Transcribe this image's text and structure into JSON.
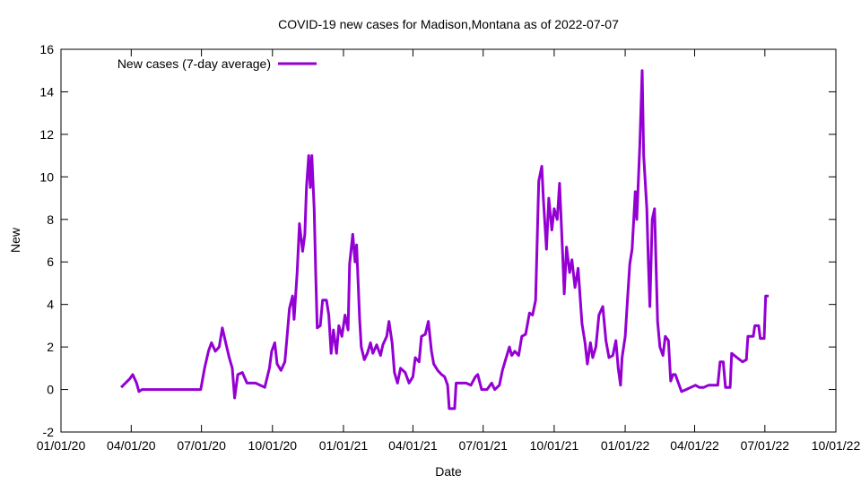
{
  "chart_data": {
    "type": "line",
    "title": "COVID-19 new cases for Madison,Montana as of 2022-07-07",
    "xlabel": "Date",
    "ylabel": "New",
    "x_unit": "days since 2020-01-01",
    "xlim": [
      0,
      1004
    ],
    "ylim": [
      -2,
      16
    ],
    "yticks": [
      -2,
      0,
      2,
      4,
      6,
      8,
      10,
      12,
      14,
      16
    ],
    "xticks": [
      {
        "day": 0,
        "label": "01/01/20"
      },
      {
        "day": 91,
        "label": "04/01/20"
      },
      {
        "day": 182,
        "label": "07/01/20"
      },
      {
        "day": 274,
        "label": "10/01/20"
      },
      {
        "day": 366,
        "label": "01/01/21"
      },
      {
        "day": 456,
        "label": "04/01/21"
      },
      {
        "day": 547,
        "label": "07/01/21"
      },
      {
        "day": 639,
        "label": "10/01/21"
      },
      {
        "day": 731,
        "label": "01/01/22"
      },
      {
        "day": 821,
        "label": "04/01/22"
      },
      {
        "day": 912,
        "label": "07/01/22"
      },
      {
        "day": 1004,
        "label": "10/01/22"
      }
    ],
    "grid": false,
    "legend_position": "top-left",
    "series": [
      {
        "name": "New cases (7-day average)",
        "color": "#9400D3",
        "x": [
          78,
          89,
          93,
          98,
          101,
          105,
          181,
          186,
          191,
          195,
          200,
          205,
          209,
          214,
          218,
          222,
          225,
          229,
          235,
          241,
          252,
          264,
          270,
          273,
          277,
          280,
          285,
          290,
          293,
          296,
          300,
          302,
          306,
          309,
          313,
          316,
          318,
          321,
          323,
          325,
          328,
          330,
          332,
          336,
          339,
          344,
          347,
          350,
          353,
          357,
          360,
          364,
          368,
          372,
          374,
          378,
          381,
          383,
          387,
          389,
          393,
          397,
          401,
          404,
          409,
          414,
          417,
          422,
          425,
          429,
          432,
          436,
          440,
          446,
          451,
          456,
          459,
          464,
          467,
          472,
          476,
          480,
          483,
          488,
          493,
          497,
          501,
          503,
          510,
          512,
          519,
          525,
          531,
          537,
          540,
          545,
          552,
          558,
          562,
          568,
          572,
          576,
          581,
          584,
          588,
          593,
          597,
          602,
          607,
          611,
          615,
          619,
          623,
          625,
          629,
          632,
          636,
          639,
          643,
          646,
          650,
          652,
          655,
          659,
          662,
          666,
          670,
          675,
          679,
          682,
          686,
          689,
          693,
          697,
          702,
          706,
          710,
          715,
          719,
          722,
          725,
          727,
          731,
          734,
          737,
          740,
          744,
          746,
          750,
          753,
          755,
          759,
          761,
          763,
          766,
          769,
          773,
          776,
          780,
          783,
          787,
          790,
          793,
          796,
          799,
          804,
          810,
          816,
          822,
          827,
          833,
          839,
          845,
          851,
          854,
          858,
          861,
          867,
          869,
          876,
          883,
          888,
          890,
          897,
          899,
          904,
          906,
          911,
          913,
          917
        ],
        "y": [
          0.1,
          0.5,
          0.7,
          0.3,
          -0.1,
          0,
          0,
          1.0,
          1.8,
          2.2,
          1.8,
          2.0,
          2.9,
          2.1,
          1.5,
          1.0,
          -0.4,
          0.7,
          0.8,
          0.3,
          0.3,
          0.1,
          1.0,
          1.8,
          2.2,
          1.2,
          0.9,
          1.3,
          2.5,
          3.8,
          4.4,
          3.3,
          5.5,
          7.8,
          6.5,
          7.3,
          9.5,
          11.0,
          9.5,
          11.0,
          8.5,
          5.5,
          2.9,
          3.0,
          4.2,
          4.2,
          3.5,
          1.7,
          2.8,
          1.7,
          3.0,
          2.5,
          3.5,
          2.8,
          5.9,
          7.3,
          6.0,
          6.8,
          3.3,
          2.0,
          1.4,
          1.7,
          2.2,
          1.7,
          2.1,
          1.6,
          2.1,
          2.5,
          3.2,
          2.2,
          0.8,
          0.3,
          1.0,
          0.8,
          0.3,
          0.6,
          1.5,
          1.3,
          2.5,
          2.6,
          3.2,
          1.8,
          1.2,
          0.9,
          0.7,
          0.6,
          0.2,
          -0.9,
          -0.9,
          0.3,
          0.3,
          0.3,
          0.2,
          0.6,
          0.7,
          0.0,
          0.0,
          0.3,
          0.0,
          0.2,
          0.9,
          1.4,
          2.0,
          1.6,
          1.8,
          1.6,
          2.5,
          2.6,
          3.6,
          3.5,
          4.2,
          9.8,
          10.5,
          9.0,
          6.6,
          9.0,
          7.5,
          8.5,
          8.0,
          9.7,
          6.3,
          4.5,
          6.7,
          5.5,
          6.1,
          4.8,
          5.7,
          3.1,
          2.2,
          1.2,
          2.2,
          1.5,
          2.0,
          3.5,
          3.9,
          2.3,
          1.5,
          1.6,
          2.3,
          1.0,
          0.2,
          1.5,
          2.5,
          4.2,
          5.9,
          6.6,
          9.3,
          8.0,
          11.5,
          15.0,
          11.0,
          8.5,
          6.0,
          3.9,
          8.0,
          8.5,
          3.2,
          2.0,
          1.6,
          2.5,
          2.3,
          0.4,
          0.7,
          0.7,
          0.4,
          -0.1,
          0.0,
          0.1,
          0.2,
          0.1,
          0.1,
          0.2,
          0.2,
          0.2,
          1.3,
          1.3,
          0.1,
          0.1,
          1.7,
          1.5,
          1.3,
          1.4,
          2.5,
          2.5,
          3.0,
          3.0,
          2.4,
          2.4,
          4.4,
          4.4
        ]
      }
    ]
  }
}
